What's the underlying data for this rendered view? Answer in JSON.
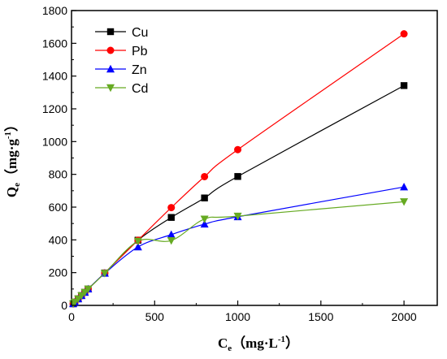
{
  "chart_data": {
    "type": "line",
    "xlabel": {
      "main": "C",
      "sub": "e",
      "unit_pre": "（mg·L",
      "unit_sup": "-1",
      "unit_post": "）"
    },
    "ylabel": {
      "main": "Q",
      "sub": "e",
      "unit_pre": "（mg·g",
      "unit_sup": "-1",
      "unit_post": "）"
    },
    "xlim": [
      0,
      2200
    ],
    "ylim": [
      0,
      1800
    ],
    "x_ticks": [
      0,
      500,
      1000,
      1500,
      2000
    ],
    "y_ticks": [
      0,
      200,
      400,
      600,
      800,
      1000,
      1200,
      1400,
      1600,
      1800
    ],
    "grid": false,
    "legend_position": "top-left",
    "series": [
      {
        "name": "Cu",
        "color": "#000000",
        "marker": "square",
        "x": [
          10,
          20,
          40,
          60,
          80,
          100,
          200,
          400,
          600,
          800,
          1000,
          2000
        ],
        "y": [
          10,
          20,
          40,
          60,
          80,
          100,
          198,
          398,
          537,
          656,
          787,
          1342
        ]
      },
      {
        "name": "Pb",
        "color": "#ff0000",
        "marker": "circle",
        "x": [
          10,
          20,
          40,
          60,
          80,
          100,
          200,
          400,
          600,
          800,
          1000,
          2000
        ],
        "y": [
          10,
          20,
          40,
          60,
          80,
          100,
          198,
          398,
          597,
          786,
          951,
          1658
        ]
      },
      {
        "name": "Zn",
        "color": "#0000ff",
        "marker": "triangle-up",
        "x": [
          10,
          20,
          40,
          60,
          80,
          100,
          200,
          400,
          600,
          800,
          1000,
          2000
        ],
        "y": [
          10,
          20,
          40,
          60,
          80,
          100,
          196,
          357,
          432,
          496,
          541,
          723
        ]
      },
      {
        "name": "Cd",
        "color": "#66aa22",
        "marker": "triangle-down",
        "x": [
          10,
          20,
          40,
          60,
          80,
          100,
          200,
          400,
          600,
          800,
          1000,
          2000
        ],
        "y": [
          10,
          20,
          40,
          60,
          80,
          100,
          196,
          392,
          396,
          527,
          545,
          633
        ]
      }
    ]
  }
}
